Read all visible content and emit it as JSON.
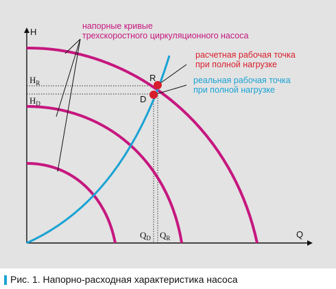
{
  "annotations": {
    "curves_label": [
      "напорные кривые",
      "трехскоростного циркуляционного насоса"
    ],
    "design_point_label": [
      "расчетная рабочая точка",
      "при полной нагрузке"
    ],
    "actual_point_label": [
      "реальная рабочая точка",
      "при полной нагрузке"
    ]
  },
  "axes": {
    "y_label": "H",
    "x_label": "Q"
  },
  "levels": {
    "h_r": {
      "base": "H",
      "sub": "R"
    },
    "h_d": {
      "base": "H",
      "sub": "D"
    },
    "q_d": {
      "base": "Q",
      "sub": "D"
    },
    "q_r": {
      "base": "Q",
      "sub": "R"
    }
  },
  "points": {
    "design": "R",
    "actual": "D"
  },
  "colors": {
    "pump_curves": "#c6177f",
    "system_curve": "#1aa3d4",
    "design_point": "#d81e2c",
    "panel_background": "#e3e3e3"
  },
  "caption": "Рис. 1. Напорно-расходная характеристика насоса"
}
